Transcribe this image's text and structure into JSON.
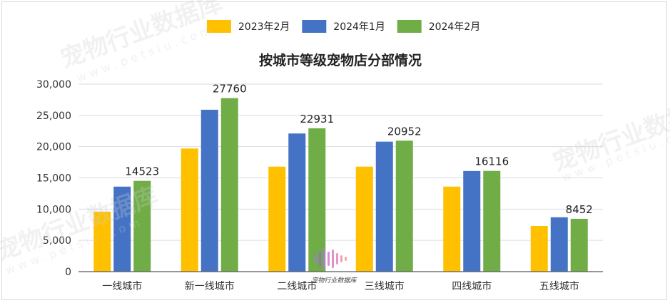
{
  "chart_data": {
    "type": "bar",
    "title": "按城市等级宠物店分部情况",
    "categories": [
      "一线城市",
      "新一线城市",
      "二线城市",
      "三线城市",
      "四线城市",
      "五线城市"
    ],
    "series": [
      {
        "name": "2023年2月",
        "color": "#FFC000",
        "values": [
          9600,
          19700,
          16800,
          16800,
          13600,
          7300
        ]
      },
      {
        "name": "2024年1月",
        "color": "#4472C4",
        "values": [
          13600,
          25900,
          22100,
          20800,
          16100,
          8700
        ]
      },
      {
        "name": "2024年2月",
        "color": "#70AD47",
        "values": [
          14523,
          27760,
          22931,
          20952,
          16116,
          8452
        ]
      }
    ],
    "data_labels_series": "2024年2月",
    "y_ticks": [
      "0",
      "5,000",
      "10,000",
      "15,000",
      "20,000",
      "25,000",
      "30,000"
    ],
    "ylim": [
      0,
      30000
    ],
    "grid": true,
    "legend_position": "top"
  },
  "watermark": {
    "text": "宠物行业数据库",
    "url": "w w w . p e t s i u . c o m"
  },
  "logo": {
    "text": "宠物行业数据库"
  }
}
